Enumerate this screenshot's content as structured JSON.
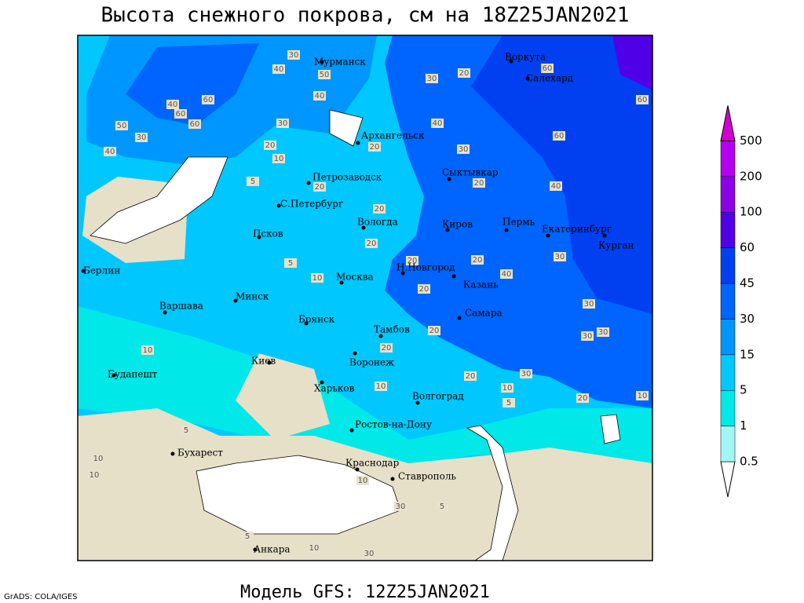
{
  "title": "Высота снежного покрова, см на 18Z25JAN2021",
  "footer": "Модель GFS: 12Z25JAN2021",
  "credit": "GrADS: COLA/IGES",
  "colorbar": {
    "levels": [
      0.5,
      1,
      5,
      15,
      30,
      45,
      60,
      100,
      200,
      500
    ],
    "colors": [
      "#ffffff",
      "#a0f5f5",
      "#00e8e8",
      "#00c8ff",
      "#0096ff",
      "#0064ff",
      "#0040f0",
      "#5000e6",
      "#8c00e6",
      "#b400f0",
      "#d200d2"
    ]
  },
  "cities": [
    "Мурманск",
    "Воркута",
    "Салехард",
    "Архангельск",
    "Сыктывкар",
    "Петрозаводск",
    "С.Петербург",
    "Вологда",
    "Киров",
    "Пермь",
    "Екатеринбург",
    "Курган",
    "Псков",
    "Берлин",
    "Н.Новгород",
    "Казань",
    "Москва",
    "Минск",
    "Варшава",
    "Самара",
    "Брянск",
    "Тамбов",
    "Киев",
    "Воронеж",
    "Будапешт",
    "Харьков",
    "Волгоград",
    "Ростов-на-Дону",
    "Бухарест",
    "Краснодар",
    "Ставрополь",
    "Анкара"
  ],
  "contour_labels": [
    30,
    40,
    50,
    40,
    60,
    40,
    60,
    60,
    50,
    30,
    40,
    30,
    20,
    10,
    5,
    20,
    20,
    20,
    5,
    10,
    40,
    30,
    20,
    20,
    40,
    60,
    60,
    60,
    20,
    30,
    20,
    20,
    40,
    30,
    20,
    30,
    30,
    30,
    20,
    20,
    20,
    30,
    10,
    5,
    20,
    10,
    10,
    10,
    5,
    10,
    10,
    5,
    10,
    30,
    30,
    5,
    10
  ]
}
